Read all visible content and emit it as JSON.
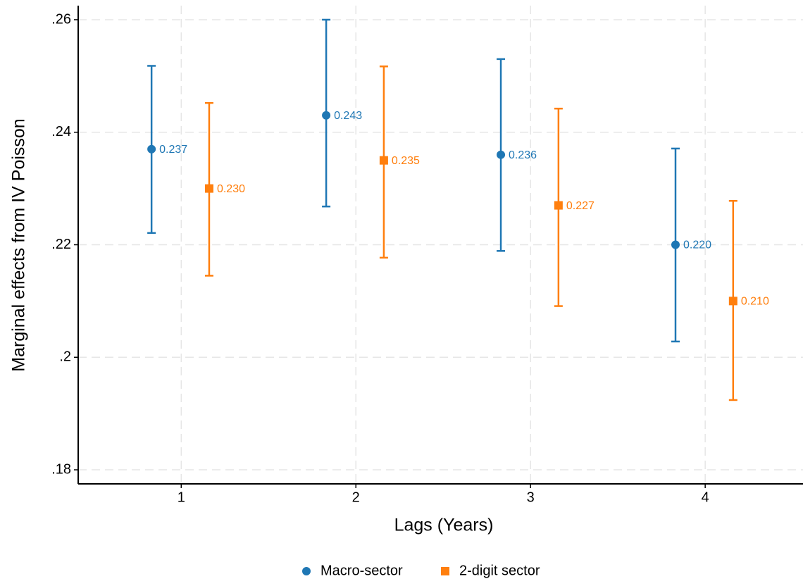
{
  "chart_data": {
    "type": "errorbar",
    "xlabel": "Lags (Years)",
    "ylabel": "Marginal effects from IV Poisson",
    "xlim": [
      0.41,
      4.56
    ],
    "xticks": [
      1,
      2,
      3,
      4
    ],
    "ylim": [
      0.1775,
      0.2625
    ],
    "yticks": [
      {
        "value": 0.18,
        "label": ".18"
      },
      {
        "value": 0.2,
        "label": ".2"
      },
      {
        "value": 0.22,
        "label": ".22"
      },
      {
        "value": 0.24,
        "label": ".24"
      },
      {
        "value": 0.26,
        "label": ".26"
      }
    ],
    "grid": true,
    "legend": "bottom",
    "series": [
      {
        "name": "Macro-sector",
        "color": "#1f77b4",
        "marker": "circle",
        "x": [
          0.83,
          1.83,
          2.83,
          3.83
        ],
        "values": [
          0.237,
          0.243,
          0.236,
          0.22
        ],
        "value_labels": [
          "0.237",
          "0.243",
          "0.236",
          "0.220"
        ],
        "lower": [
          0.2221,
          0.2268,
          0.2189,
          0.2028
        ],
        "upper": [
          0.2518,
          0.26,
          0.253,
          0.2371
        ]
      },
      {
        "name": "2-digit sector",
        "color": "#ff7f0e",
        "marker": "square",
        "x": [
          1.16,
          2.16,
          3.16,
          4.16
        ],
        "values": [
          0.23,
          0.235,
          0.227,
          0.21
        ],
        "value_labels": [
          "0.230",
          "0.235",
          "0.227",
          "0.210"
        ],
        "lower": [
          0.2145,
          0.2177,
          0.2091,
          0.1924
        ],
        "upper": [
          0.2452,
          0.2517,
          0.2442,
          0.2278
        ]
      }
    ]
  }
}
